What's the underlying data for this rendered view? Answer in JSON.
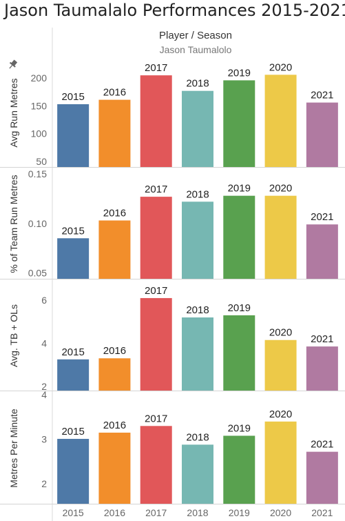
{
  "title": "Jason Taumalalo Performances 2015-2021",
  "header": {
    "group_label": "Player / Season",
    "player": "Jason Taumalolo"
  },
  "chart_data": {
    "type": "bar",
    "categories": [
      "2015",
      "2016",
      "2017",
      "2018",
      "2019",
      "2020",
      "2021"
    ],
    "colors": [
      "#4e79a7",
      "#f28e2b",
      "#e15759",
      "#76b7b2",
      "#59a14f",
      "#edc948",
      "#b07aa1"
    ],
    "panels": [
      {
        "ylabel": "Avg Run Metres",
        "pinned": true,
        "ylim": [
          40,
          235
        ],
        "ticks": [
          50,
          100,
          150,
          200
        ],
        "tick_labels": [
          "50",
          "100",
          "150",
          "200"
        ],
        "values": [
          153,
          161,
          205,
          177,
          196,
          206,
          156
        ]
      },
      {
        "ylabel": "% of Team Run Metres",
        "pinned": false,
        "ylim": [
          0.044,
          0.155
        ],
        "ticks": [
          0.05,
          0.1,
          0.15
        ],
        "tick_labels": [
          "0.05",
          "0.10",
          "0.15"
        ],
        "values": [
          0.085,
          0.103,
          0.127,
          0.122,
          0.128,
          0.128,
          0.099
        ]
      },
      {
        "ylabel": "Avg. TB + OLs",
        "pinned": false,
        "ylim": [
          1.8,
          6.9
        ],
        "ticks": [
          2,
          4,
          6
        ],
        "tick_labels": [
          "2",
          "4",
          "6"
        ],
        "values": [
          3.25,
          3.3,
          6.1,
          5.2,
          5.3,
          4.15,
          3.85
        ]
      },
      {
        "ylabel": "Metres Per Minute",
        "pinned": false,
        "ylim": [
          1.55,
          4.05
        ],
        "ticks": [
          2,
          3,
          4
        ],
        "tick_labels": [
          "2",
          "3",
          "4"
        ],
        "values": [
          3.01,
          3.15,
          3.3,
          2.88,
          3.08,
          3.4,
          2.72
        ]
      }
    ]
  }
}
